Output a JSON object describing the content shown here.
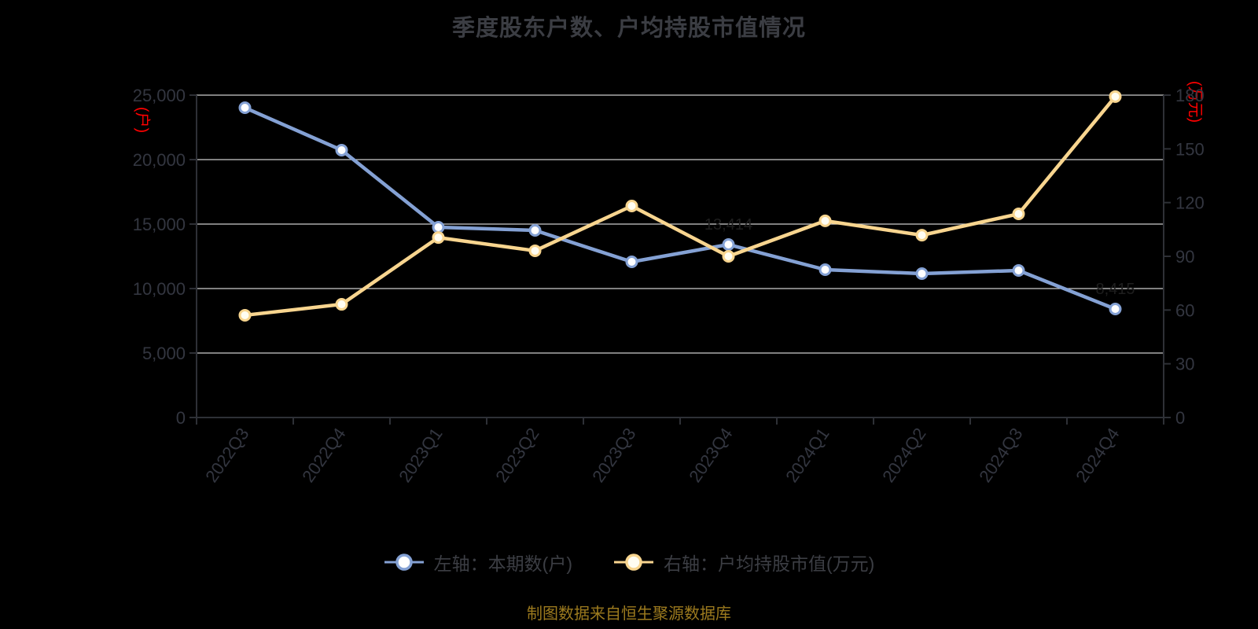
{
  "colors": {
    "background": "#000000",
    "title_text": "#3b3d43",
    "axis_text": "#333640",
    "axis_line": "#2e3036",
    "gridline": "#cccccc",
    "blue_series": "#84a1d4",
    "yellow_series": "#f8d58f",
    "red_unit": "#ff0000",
    "hidden_data_label": "#1e1e1e",
    "marker_fill_blue": "#ffffff",
    "marker_fill_yellow": "#fffdf2",
    "source_text": "#9c7a1e"
  },
  "footer": {
    "source_text": "制图数据来自恒生聚源数据库"
  },
  "chart_data": {
    "type": "line",
    "title": "季度股东户数、户均持股市值情况",
    "grid": true,
    "legend_position": "bottom",
    "categories": [
      "2022Q3",
      "2022Q4",
      "2023Q1",
      "2023Q2",
      "2023Q3",
      "2023Q4",
      "2024Q1",
      "2024Q2",
      "2024Q3",
      "2024Q4"
    ],
    "left_axis": {
      "unit": "(户)",
      "min": 0,
      "max": 25000,
      "tick_step": 5000,
      "tick_labels": [
        "25,000",
        "20,000",
        "15,000",
        "10,000",
        "5,000",
        "0"
      ]
    },
    "right_axis": {
      "unit": "(万元)",
      "min": 0,
      "max": 180,
      "tick_step": 30,
      "tick_labels": [
        "180",
        "150",
        "120",
        "90",
        "60",
        "30",
        "0"
      ]
    },
    "series": [
      {
        "name": "左轴：本期数(户)",
        "axis": "left",
        "color": "#84a1d4",
        "marker_fill": "#ffffff",
        "values": [
          24024,
          20732,
          14756,
          14512,
          12073,
          13414,
          11463,
          11159,
          11403,
          8415
        ],
        "data_labels": [
          {
            "index": 5,
            "text": "13,414"
          },
          {
            "index": 9,
            "text": "8,415"
          }
        ]
      },
      {
        "name": "右轴：户均持股市值(万元)",
        "axis": "right",
        "color": "#f8d58f",
        "marker_fill": "#fffdf2",
        "values": [
          57.1,
          63.2,
          100.5,
          93.1,
          118.1,
          90.0,
          109.8,
          101.8,
          113.7,
          179.2
        ],
        "data_labels": []
      }
    ]
  }
}
